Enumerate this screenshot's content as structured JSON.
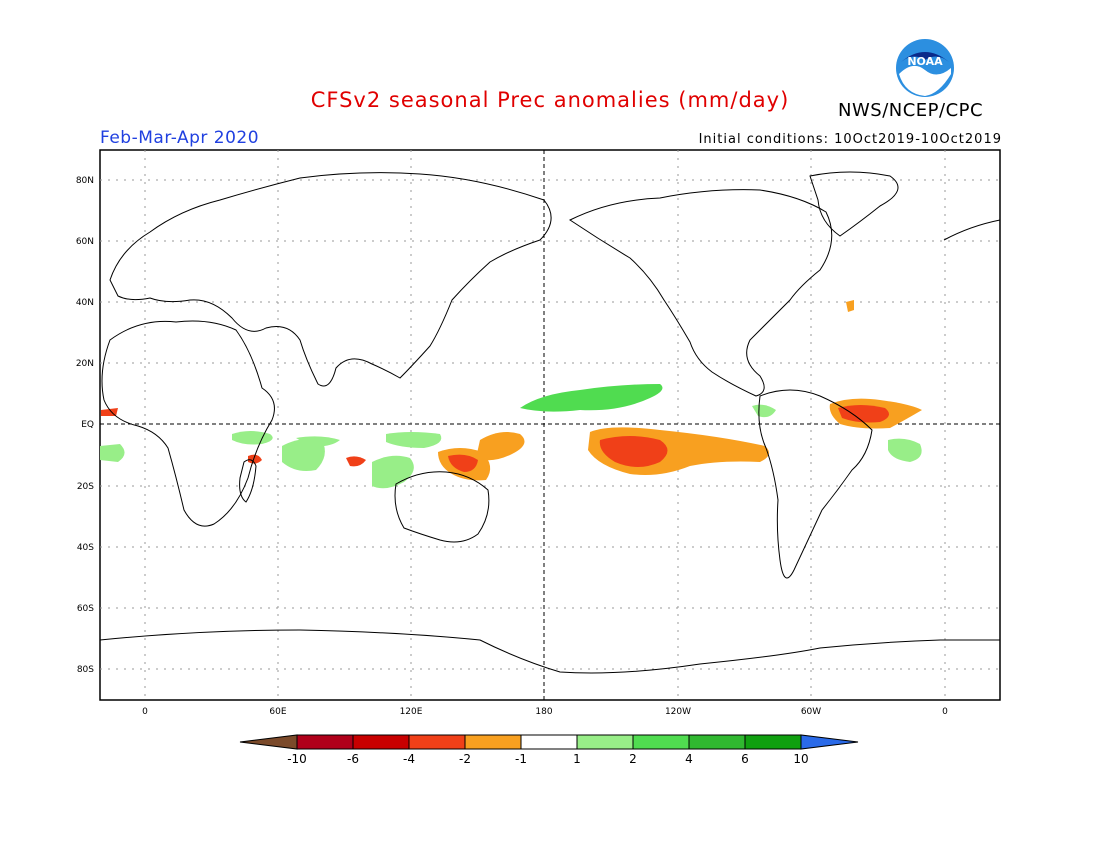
{
  "title": "CFSv2 seasonal Prec anomalies (mm/day)",
  "agency": "NWS/NCEP/CPC",
  "logo_text": "NOAA",
  "season": "Feb-Mar-Apr 2020",
  "initial_conditions": "Initial conditions: 10Oct2019-10Oct2019",
  "lat_labels": [
    "80N",
    "60N",
    "40N",
    "20N",
    "EQ",
    "20S",
    "40S",
    "60S",
    "80S"
  ],
  "lon_labels": [
    "0",
    "60E",
    "120E",
    "180",
    "120W",
    "60W",
    "0"
  ],
  "colorbar": {
    "labels": [
      "-10",
      "-6",
      "-4",
      "-2",
      "-1",
      "1",
      "2",
      "4",
      "6",
      "10"
    ],
    "colors": [
      "#7b4a2a",
      "#b0001a",
      "#c80000",
      "#f04018",
      "#f8a020",
      "#ffffff",
      "#98ee88",
      "#50dc50",
      "#30b830",
      "#10a010",
      "#2a6ae8"
    ]
  },
  "colors": {
    "title": "#e00000",
    "season": "#2040e0",
    "dry_strong": "#f04018",
    "dry": "#f8a020",
    "wet": "#50dc50",
    "wet_light": "#98ee88"
  }
}
